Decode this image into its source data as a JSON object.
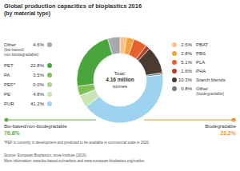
{
  "chart_data": {
    "type": "pie",
    "title": "Global production capacities of bioplastics 2016",
    "subtitle": "(by material type)",
    "total": {
      "label": "Total:",
      "value": 4.16,
      "value_label": "4.16 million",
      "unit": "tonnes"
    },
    "groups": [
      {
        "name": "Bio-based/non-biodegradable",
        "value": 76.8,
        "value_label": "76.8%",
        "color": "#5fb246",
        "categories": [
          "Other (bio-based/non-biodegradable)",
          "PET",
          "PA",
          "PEF*",
          "PE",
          "PUR"
        ],
        "values": [
          4.6,
          22.8,
          3.5,
          0.0,
          4.8,
          41.2
        ],
        "value_labels": [
          "4.6%",
          "22.8%",
          "3.5%",
          "0.0%",
          "4.8%",
          "41.2%"
        ],
        "colors": [
          "#a7a9ac",
          "#4aa63c",
          "#7cc152",
          "#a9d48a",
          "#cbe5b4",
          "#9dd3ef"
        ]
      },
      {
        "name": "Biodegradable",
        "value": 23.2,
        "value_label": "23.2%",
        "color": "#f39432",
        "categories": [
          "PBAT",
          "PBS",
          "PLA",
          "PHA",
          "Starch blends",
          "Other (biodegradable)"
        ],
        "values": [
          2.5,
          2.8,
          5.1,
          1.6,
          10.3,
          0.8
        ],
        "value_labels": [
          "2.5%",
          "2.8%",
          "5.1%",
          "1.6%",
          "10.3%",
          "0.8%"
        ],
        "colors": [
          "#fbc18a",
          "#f7a13f",
          "#e8612c",
          "#b2432a",
          "#4a3a30",
          "#7b7d80"
        ]
      }
    ],
    "footnote": "*PEF is currently in development and predicted to be available in commercial scale in 2020.",
    "source": "Source: European Bioplastics, nova-Institute (2016).",
    "more_information": "More information: www.bio-based.eu/markets and www.european-bioplastics.org/market"
  }
}
